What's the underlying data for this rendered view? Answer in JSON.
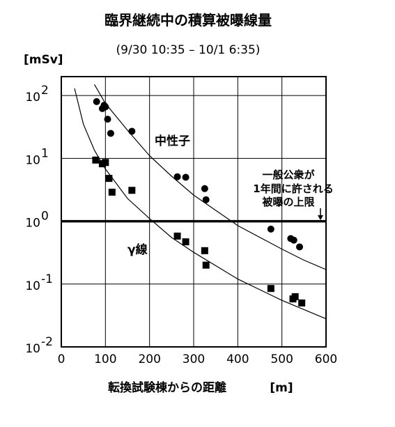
{
  "chart_data": {
    "type": "scatter",
    "title": "臨界継続中の積算被曝線量",
    "subtitle": "(9/30 10:35 – 10/1 6:35)",
    "xlabel": "転換試験棟からの距離",
    "xunit": "[m]",
    "yunit": "[mSv]",
    "xlim": [
      0,
      600
    ],
    "ylim": [
      0.01,
      200
    ],
    "yscale": "log",
    "grid": true,
    "x_ticks": [
      "0",
      "100",
      "200",
      "300",
      "400",
      "500",
      "600"
    ],
    "y_ticks": [
      {
        "value": 100,
        "base": "10",
        "exp": "2"
      },
      {
        "value": 10,
        "base": "10",
        "exp": "1"
      },
      {
        "value": 1,
        "base": "10",
        "exp": "0"
      },
      {
        "value": 0.1,
        "base": "10",
        "exp": "-1"
      },
      {
        "value": 0.01,
        "base": "10",
        "exp": "-2"
      }
    ],
    "series": [
      {
        "name": "中性子",
        "marker": "circle",
        "x": [
          80,
          93,
          97,
          100,
          105,
          112,
          160,
          263,
          282,
          325,
          328,
          475,
          520,
          527,
          540
        ],
        "y": [
          80,
          62,
          70,
          66,
          42,
          25,
          27,
          5.1,
          5.0,
          3.3,
          2.2,
          0.75,
          0.53,
          0.5,
          0.39
        ],
        "fit": [
          [
            75,
            150
          ],
          [
            100,
            75
          ],
          [
            150,
            28
          ],
          [
            200,
            11
          ],
          [
            250,
            5.2
          ],
          [
            300,
            2.6
          ],
          [
            400,
            0.85
          ],
          [
            500,
            0.36
          ],
          [
            550,
            0.24
          ],
          [
            600,
            0.17
          ]
        ]
      },
      {
        "name": "γ線",
        "marker": "square",
        "x": [
          78,
          93,
          100,
          108,
          115,
          160,
          263,
          282,
          325,
          328,
          475,
          525,
          530,
          545
        ],
        "y": [
          9.4,
          8.2,
          8.6,
          4.8,
          2.9,
          3.1,
          0.58,
          0.47,
          0.34,
          0.2,
          0.085,
          0.058,
          0.063,
          0.05
        ],
        "fit": [
          [
            30,
            130
          ],
          [
            50,
            35
          ],
          [
            75,
            13.5
          ],
          [
            100,
            6.8
          ],
          [
            150,
            2.3
          ],
          [
            200,
            1.1
          ],
          [
            250,
            0.55
          ],
          [
            300,
            0.32
          ],
          [
            400,
            0.12
          ],
          [
            500,
            0.055
          ],
          [
            600,
            0.028
          ]
        ]
      }
    ],
    "reference_line": {
      "y": 1,
      "label": [
        "一般公衆が",
        "1年間に許される",
        "被曝の上限"
      ]
    }
  }
}
